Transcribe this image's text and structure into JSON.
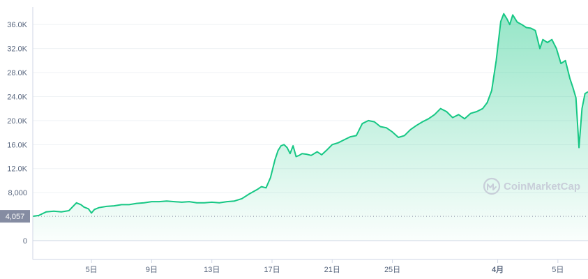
{
  "chart_data": {
    "type": "area",
    "title": "",
    "xlabel": "",
    "ylabel": "",
    "ylim": [
      0,
      38000
    ],
    "y_ticks": [
      {
        "value": 0,
        "label": "0"
      },
      {
        "value": 8000,
        "label": "8,000"
      },
      {
        "value": 12000,
        "label": "12.0K"
      },
      {
        "value": 16000,
        "label": "16.0K"
      },
      {
        "value": 20000,
        "label": "20.0K"
      },
      {
        "value": 24000,
        "label": "24.0K"
      },
      {
        "value": 28000,
        "label": "28.0K"
      },
      {
        "value": 32000,
        "label": "32.0K"
      },
      {
        "value": 36000,
        "label": "36.0K"
      }
    ],
    "x_ticks": [
      {
        "value": 5,
        "label": "5日",
        "strong": false
      },
      {
        "value": 9,
        "label": "9日",
        "strong": false
      },
      {
        "value": 13,
        "label": "13日",
        "strong": false
      },
      {
        "value": 17,
        "label": "17日",
        "strong": false
      },
      {
        "value": 21,
        "label": "21日",
        "strong": false
      },
      {
        "value": 25,
        "label": "25日",
        "strong": false
      },
      {
        "value": 32,
        "label": "4月",
        "strong": true
      },
      {
        "value": 36,
        "label": "5日",
        "strong": false
      }
    ],
    "xlim": [
      1.1,
      38.0
    ],
    "reference_line": {
      "value": 4057,
      "label": "4,057"
    },
    "grid": true,
    "colors": {
      "line": "#16c784",
      "fill_top": "#16c784",
      "grid": "#eff2f5",
      "axis": "#cfd6e4",
      "ref_bg": "#858ca2"
    },
    "series": [
      {
        "x": [
          1.1,
          1.5,
          2.0,
          2.5,
          3.0,
          3.5,
          4.0,
          4.3,
          4.5,
          4.8,
          5.0,
          5.2,
          5.5,
          6.0,
          6.5,
          7.0,
          7.5,
          8.0,
          8.5,
          9.0,
          9.5,
          10.0,
          10.5,
          11.0,
          11.5,
          12.0,
          12.5,
          13.0,
          13.5,
          14.0,
          14.5,
          15.0,
          15.5,
          16.0,
          16.3,
          16.6,
          16.9,
          17.2,
          17.4,
          17.6,
          17.8,
          18.0,
          18.2,
          18.4,
          18.6,
          18.8,
          19.0,
          19.3,
          19.6,
          20.0,
          20.3,
          20.6,
          21.0,
          21.4,
          21.8,
          22.2,
          22.6,
          23.0,
          23.4,
          23.8,
          24.2,
          24.6,
          25.0,
          25.4,
          25.8,
          26.2,
          26.6,
          27.0,
          27.4,
          27.8,
          28.2,
          28.6,
          29.0,
          29.4,
          29.8,
          30.2,
          30.6,
          31.0,
          31.3,
          31.6,
          31.9,
          32.2,
          32.4,
          32.6,
          32.8,
          33.0,
          33.3,
          33.6,
          33.9,
          34.2,
          34.5,
          34.8,
          35.0,
          35.3,
          35.6,
          35.9,
          36.2,
          36.5,
          36.8,
          37.0,
          37.2,
          37.4,
          37.6,
          37.8,
          38.0
        ],
        "values": [
          4057,
          4200,
          4800,
          4900,
          4800,
          5000,
          6300,
          6000,
          5600,
          5300,
          4600,
          5200,
          5500,
          5700,
          5800,
          6000,
          6000,
          6200,
          6300,
          6500,
          6500,
          6600,
          6500,
          6400,
          6500,
          6300,
          6300,
          6400,
          6300,
          6500,
          6600,
          7000,
          7800,
          8500,
          9000,
          8800,
          10500,
          13500,
          15000,
          15800,
          16000,
          15500,
          14500,
          15800,
          14000,
          14200,
          14500,
          14400,
          14200,
          14800,
          14300,
          15000,
          16000,
          16300,
          16800,
          17300,
          17500,
          19500,
          20000,
          19800,
          19000,
          18800,
          18100,
          17200,
          17500,
          18500,
          19200,
          19800,
          20300,
          21000,
          22000,
          21500,
          20500,
          21000,
          20300,
          21200,
          21500,
          22000,
          23000,
          25000,
          30000,
          36500,
          37800,
          37000,
          36000,
          37600,
          36400,
          36000,
          35500,
          35400,
          35000,
          32000,
          33500,
          33000,
          33500,
          32000,
          29500,
          30000,
          27000,
          25500,
          23800,
          15500,
          22000,
          24500,
          24800
        ]
      }
    ],
    "watermark": "CoinMarketCap"
  }
}
